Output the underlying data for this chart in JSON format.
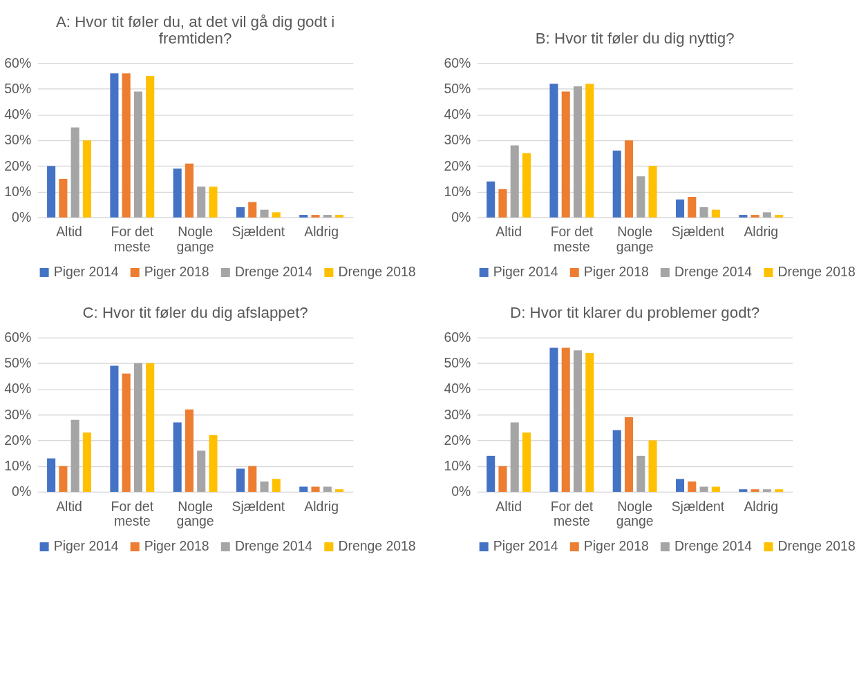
{
  "chart_data": [
    {
      "type": "bar",
      "title": "A: Hvor tit føler du, at det vil gå dig godt i fremtiden?",
      "categories": [
        "Altid",
        "For det meste",
        "Nogle gange",
        "Sjældent",
        "Aldrig"
      ],
      "ylim": [
        0,
        60
      ],
      "yticks": [
        {
          "value": 0,
          "label": "0%"
        },
        {
          "value": 10,
          "label": "10%"
        },
        {
          "value": 20,
          "label": "20%"
        },
        {
          "value": 30,
          "label": "30%"
        },
        {
          "value": 40,
          "label": "40%"
        },
        {
          "value": 50,
          "label": "50%"
        },
        {
          "value": 60,
          "label": "60%"
        }
      ],
      "grid": "y",
      "legend": "bottom",
      "series": [
        {
          "name": "Piger 2014",
          "color": "#4472c4",
          "values": [
            20,
            56,
            19,
            4,
            1
          ]
        },
        {
          "name": "Piger 2018",
          "color": "#ed7d31",
          "values": [
            15,
            56,
            21,
            6,
            1
          ]
        },
        {
          "name": "Drenge 2014",
          "color": "#a5a5a5",
          "values": [
            35,
            49,
            12,
            3,
            1
          ]
        },
        {
          "name": "Drenge 2018",
          "color": "#ffc000",
          "values": [
            30,
            55,
            12,
            2,
            1
          ]
        }
      ]
    },
    {
      "type": "bar",
      "title": "B: Hvor tit føler du dig nyttig?",
      "categories": [
        "Altid",
        "For det meste",
        "Nogle gange",
        "Sjældent",
        "Aldrig"
      ],
      "ylim": [
        0,
        60
      ],
      "yticks": [
        {
          "value": 0,
          "label": "0%"
        },
        {
          "value": 10,
          "label": "10%"
        },
        {
          "value": 20,
          "label": "20%"
        },
        {
          "value": 30,
          "label": "30%"
        },
        {
          "value": 40,
          "label": "40%"
        },
        {
          "value": 50,
          "label": "50%"
        },
        {
          "value": 60,
          "label": "60%"
        }
      ],
      "grid": "y",
      "legend": "bottom",
      "series": [
        {
          "name": "Piger 2014",
          "color": "#4472c4",
          "values": [
            14,
            52,
            26,
            7,
            1
          ]
        },
        {
          "name": "Piger 2018",
          "color": "#ed7d31",
          "values": [
            11,
            49,
            30,
            8,
            1
          ]
        },
        {
          "name": "Drenge 2014",
          "color": "#a5a5a5",
          "values": [
            28,
            51,
            16,
            4,
            2
          ]
        },
        {
          "name": "Drenge 2018",
          "color": "#ffc000",
          "values": [
            25,
            52,
            20,
            3,
            1
          ]
        }
      ]
    },
    {
      "type": "bar",
      "title": "C: Hvor tit føler du dig afslappet?",
      "categories": [
        "Altid",
        "For det meste",
        "Nogle gange",
        "Sjældent",
        "Aldrig"
      ],
      "ylim": [
        0,
        60
      ],
      "yticks": [
        {
          "value": 0,
          "label": "0%"
        },
        {
          "value": 10,
          "label": "10%"
        },
        {
          "value": 20,
          "label": "20%"
        },
        {
          "value": 30,
          "label": "30%"
        },
        {
          "value": 40,
          "label": "40%"
        },
        {
          "value": 50,
          "label": "50%"
        },
        {
          "value": 60,
          "label": "60%"
        }
      ],
      "grid": "y",
      "legend": "bottom",
      "series": [
        {
          "name": "Piger 2014",
          "color": "#4472c4",
          "values": [
            13,
            49,
            27,
            9,
            2
          ]
        },
        {
          "name": "Piger 2018",
          "color": "#ed7d31",
          "values": [
            10,
            46,
            32,
            10,
            2
          ]
        },
        {
          "name": "Drenge 2014",
          "color": "#a5a5a5",
          "values": [
            28,
            50,
            16,
            4,
            2
          ]
        },
        {
          "name": "Drenge 2018",
          "color": "#ffc000",
          "values": [
            23,
            50,
            22,
            5,
            1
          ]
        }
      ]
    },
    {
      "type": "bar",
      "title": "D: Hvor tit klarer du problemer godt?",
      "categories": [
        "Altid",
        "For det meste",
        "Nogle gange",
        "Sjældent",
        "Aldrig"
      ],
      "ylim": [
        0,
        60
      ],
      "yticks": [
        {
          "value": 0,
          "label": "0%"
        },
        {
          "value": 10,
          "label": "10%"
        },
        {
          "value": 20,
          "label": "20%"
        },
        {
          "value": 30,
          "label": "30%"
        },
        {
          "value": 40,
          "label": "40%"
        },
        {
          "value": 50,
          "label": "50%"
        },
        {
          "value": 60,
          "label": "60%"
        }
      ],
      "grid": "y",
      "legend": "bottom",
      "series": [
        {
          "name": "Piger 2014",
          "color": "#4472c4",
          "values": [
            14,
            56,
            24,
            5,
            1
          ]
        },
        {
          "name": "Piger 2018",
          "color": "#ed7d31",
          "values": [
            10,
            56,
            29,
            4,
            1
          ]
        },
        {
          "name": "Drenge 2014",
          "color": "#a5a5a5",
          "values": [
            27,
            55,
            14,
            2,
            1
          ]
        },
        {
          "name": "Drenge 2018",
          "color": "#ffc000",
          "values": [
            23,
            54,
            20,
            2,
            1
          ]
        }
      ]
    }
  ]
}
